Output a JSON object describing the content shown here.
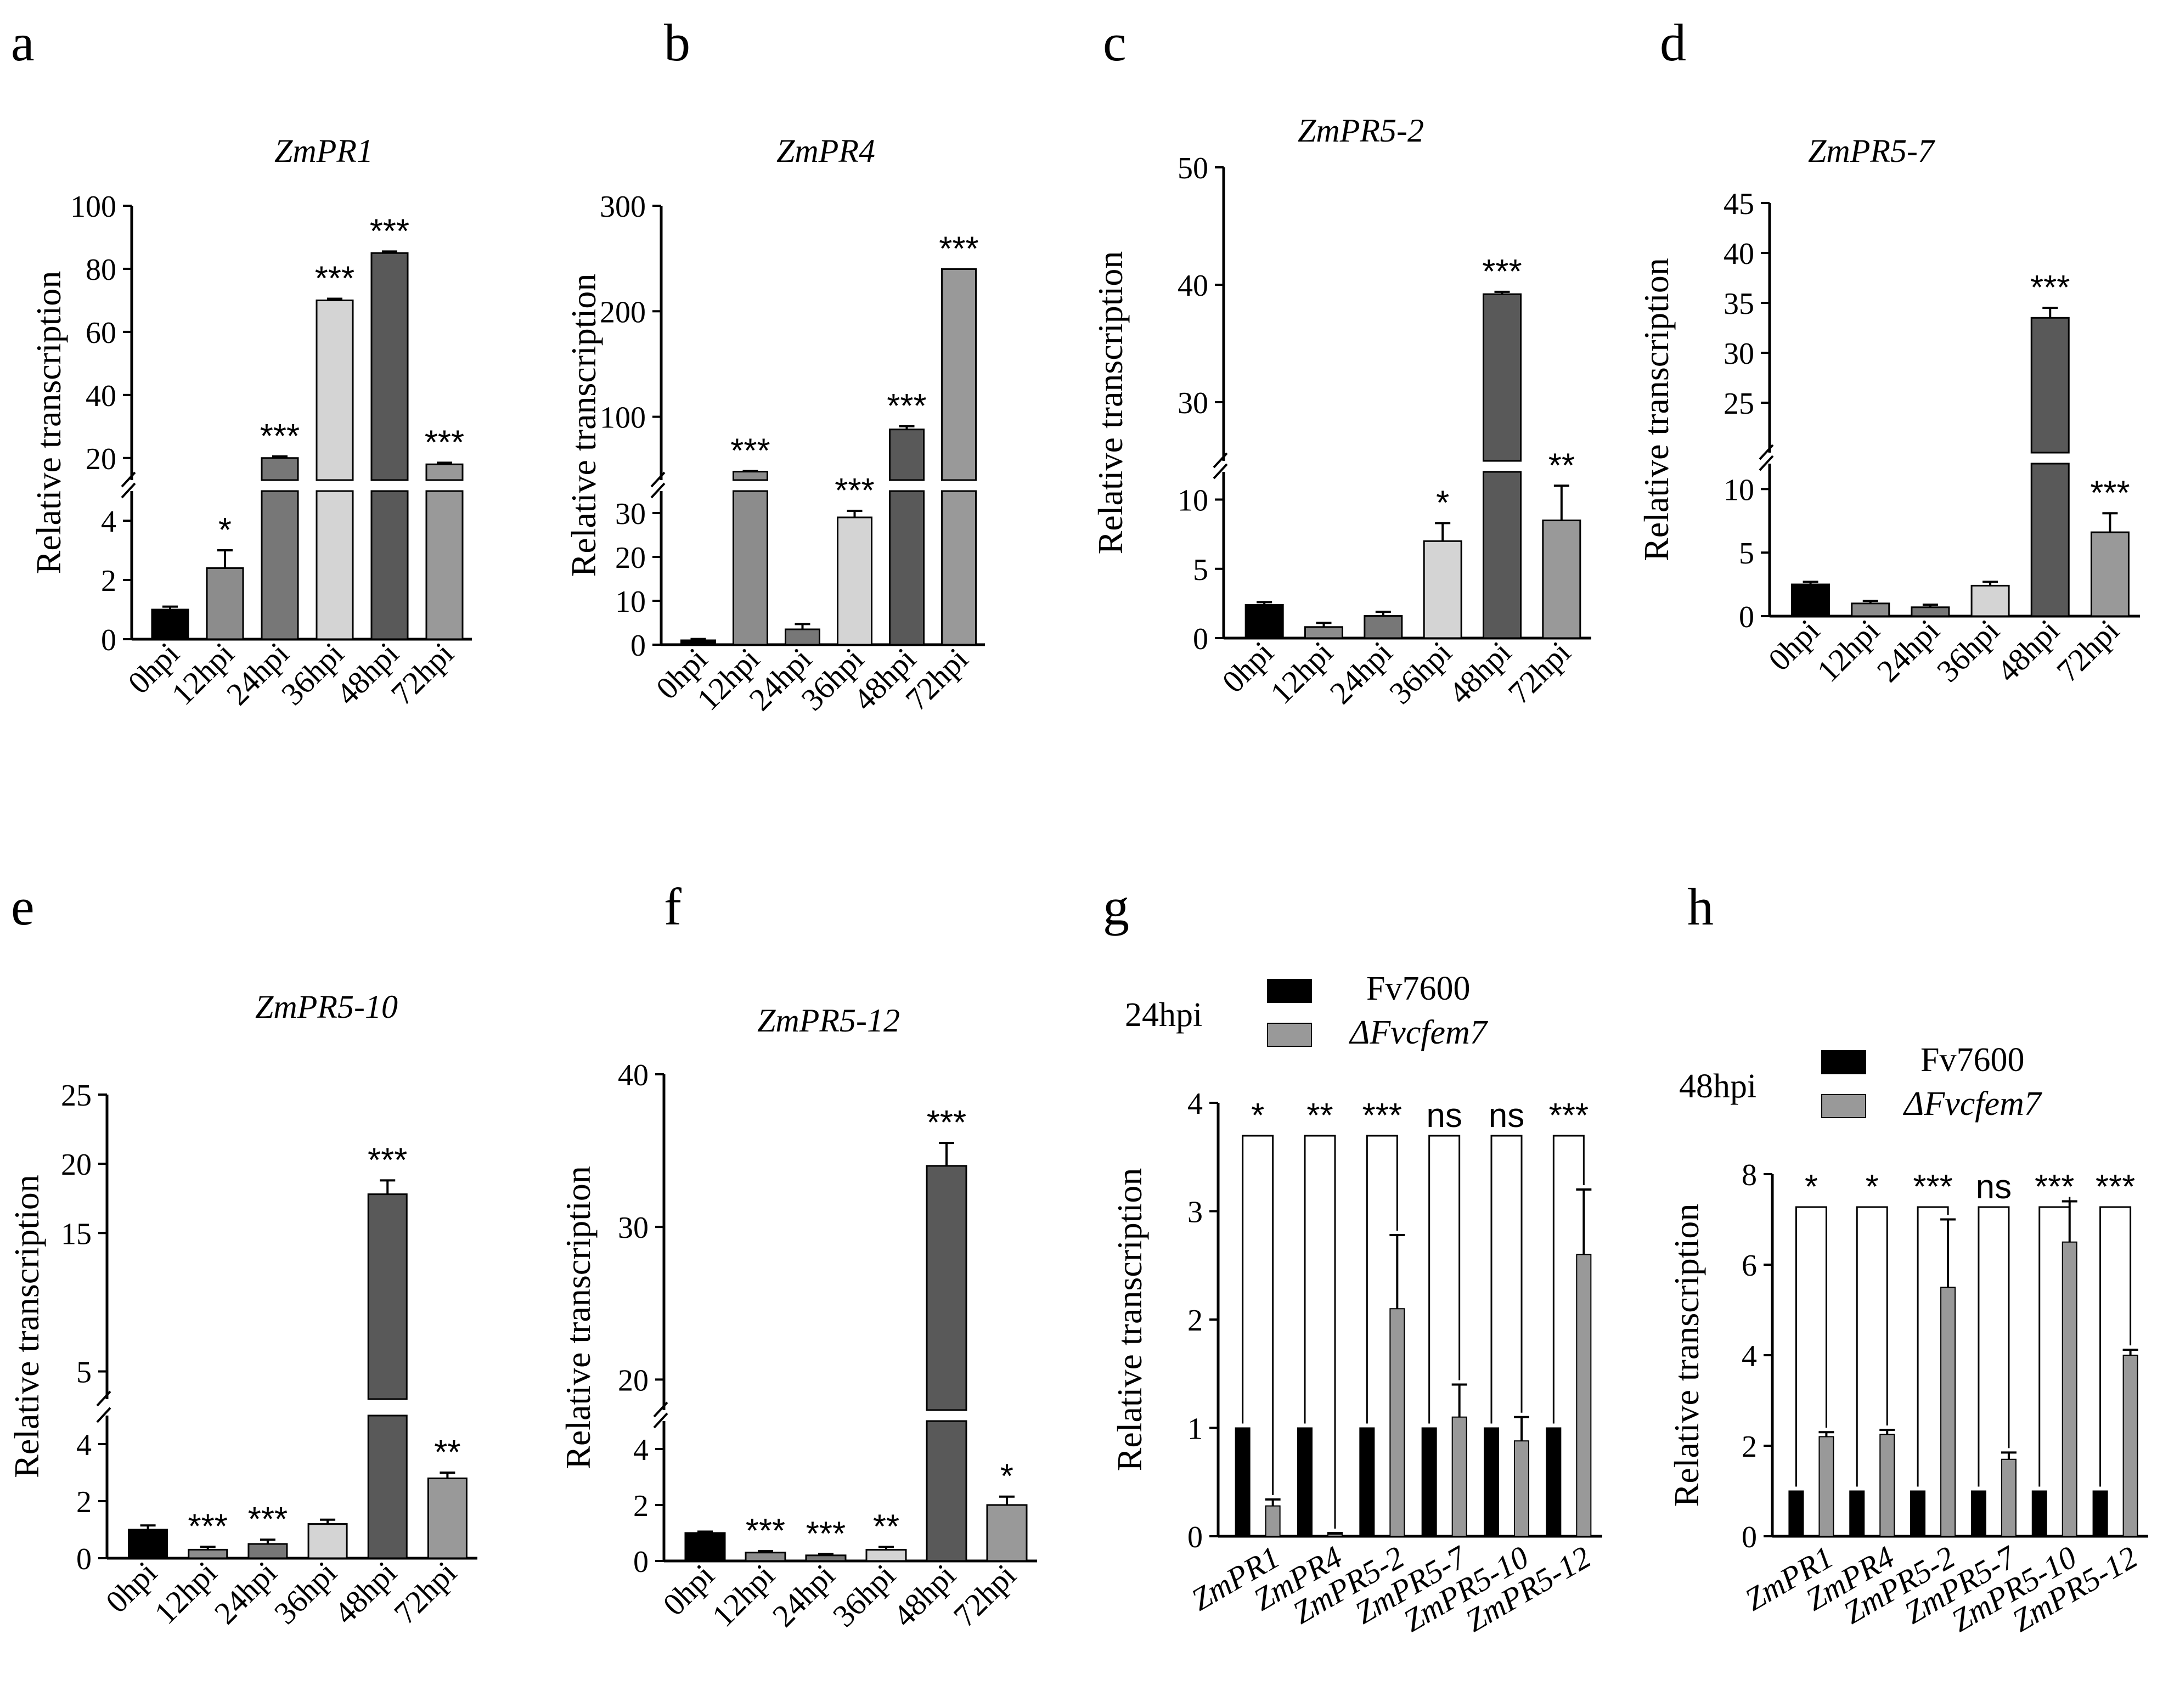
{
  "figure": {
    "panel_labels": [
      "a",
      "b",
      "c",
      "d",
      "e",
      "f",
      "g",
      "h"
    ],
    "ylabel": "Relative transcription"
  },
  "chart_data": [
    {
      "id": "a",
      "type": "bar",
      "title": "ZmPR1",
      "ylabel": "Relative transcription",
      "categories": [
        "0hpi",
        "12hpi",
        "24hpi",
        "36hpi",
        "48hpi",
        "72hpi"
      ],
      "values": [
        1.0,
        2.4,
        20,
        70,
        85,
        18
      ],
      "errors": [
        0.1,
        0.6,
        0.5,
        0.5,
        0.5,
        0.5
      ],
      "significance": [
        "",
        "*",
        "***",
        "***",
        "***",
        "***"
      ],
      "axis_break": true,
      "lower": {
        "range": [
          0,
          5
        ],
        "ticks": [
          0,
          2,
          4
        ]
      },
      "upper": {
        "range": [
          13,
          100
        ],
        "ticks": [
          20,
          40,
          60,
          80,
          100
        ]
      },
      "colors": [
        "#000000",
        "#8c8c8c",
        "#777777",
        "#d4d4d4",
        "#595959",
        "#999999"
      ]
    },
    {
      "id": "b",
      "type": "bar",
      "title": "ZmPR4",
      "ylabel": "Relative transcription",
      "categories": [
        "0hpi",
        "12hpi",
        "24hpi",
        "36hpi",
        "48hpi",
        "72hpi"
      ],
      "values": [
        1.0,
        48,
        3.5,
        29,
        88,
        240
      ],
      "errors": [
        0.3,
        0.5,
        1.2,
        1.5,
        3,
        0
      ],
      "significance": [
        "",
        "***",
        "",
        "***",
        "***",
        "***"
      ],
      "axis_break": true,
      "lower": {
        "range": [
          0,
          35
        ],
        "ticks": [
          0,
          10,
          20,
          30
        ]
      },
      "upper": {
        "range": [
          40,
          300
        ],
        "ticks": [
          100,
          200,
          300
        ]
      },
      "colors": [
        "#000000",
        "#8c8c8c",
        "#777777",
        "#d4d4d4",
        "#595959",
        "#999999"
      ]
    },
    {
      "id": "c",
      "type": "bar",
      "title": "ZmPR5-2",
      "ylabel": "Relative transcription",
      "categories": [
        "0hpi",
        "12hpi",
        "24hpi",
        "36hpi",
        "48hpi",
        "72hpi"
      ],
      "values": [
        2.4,
        0.8,
        1.6,
        7.0,
        39.2,
        8.5
      ],
      "errors": [
        0.2,
        0.3,
        0.3,
        1.3,
        0.2,
        2.5
      ],
      "significance": [
        "",
        "",
        "",
        "*",
        "***",
        "**"
      ],
      "axis_break": true,
      "lower": {
        "range": [
          0,
          12
        ],
        "ticks": [
          0,
          5,
          10
        ]
      },
      "upper": {
        "range": [
          25,
          50
        ],
        "ticks": [
          30,
          40,
          50
        ]
      },
      "colors": [
        "#000000",
        "#8c8c8c",
        "#777777",
        "#d4d4d4",
        "#595959",
        "#999999"
      ]
    },
    {
      "id": "d",
      "type": "bar",
      "title": "ZmPR5-7",
      "ylabel": "Relative transcription",
      "categories": [
        "0hpi",
        "12hpi",
        "24hpi",
        "36hpi",
        "48hpi",
        "72hpi"
      ],
      "values": [
        2.5,
        1.0,
        0.7,
        2.4,
        33.5,
        6.6
      ],
      "errors": [
        0.2,
        0.2,
        0.2,
        0.3,
        1.0,
        1.5
      ],
      "significance": [
        "",
        "",
        "",
        "",
        "***",
        "***"
      ],
      "axis_break": true,
      "lower": {
        "range": [
          0,
          12
        ],
        "ticks": [
          0,
          5,
          10
        ]
      },
      "upper": {
        "range": [
          20,
          45
        ],
        "ticks": [
          25,
          30,
          35,
          40,
          45
        ]
      },
      "colors": [
        "#000000",
        "#8c8c8c",
        "#777777",
        "#d4d4d4",
        "#595959",
        "#999999"
      ]
    },
    {
      "id": "e",
      "type": "bar",
      "title": "ZmPR5-10",
      "ylabel": "Relative transcription",
      "categories": [
        "0hpi",
        "12hpi",
        "24hpi",
        "36hpi",
        "48hpi",
        "72hpi"
      ],
      "values": [
        1.0,
        0.3,
        0.5,
        1.2,
        17.8,
        2.8
      ],
      "errors": [
        0.15,
        0.1,
        0.15,
        0.15,
        1.0,
        0.2
      ],
      "significance": [
        "",
        "***",
        "***",
        "",
        "***",
        "**"
      ],
      "axis_break": true,
      "lower": {
        "range": [
          0,
          5
        ],
        "ticks": [
          0,
          2,
          4
        ]
      },
      "upper": {
        "range": [
          3,
          25
        ],
        "ticks": [
          5,
          15,
          20,
          25
        ]
      },
      "colors": [
        "#000000",
        "#8c8c8c",
        "#777777",
        "#d4d4d4",
        "#595959",
        "#999999"
      ]
    },
    {
      "id": "f",
      "type": "bar",
      "title": "ZmPR5-12",
      "ylabel": "Relative transcription",
      "categories": [
        "0hpi",
        "12hpi",
        "24hpi",
        "36hpi",
        "48hpi",
        "72hpi"
      ],
      "values": [
        1.0,
        0.3,
        0.2,
        0.4,
        34.0,
        2.0
      ],
      "errors": [
        0.05,
        0.05,
        0.05,
        0.1,
        1.5,
        0.3
      ],
      "significance": [
        "",
        "***",
        "***",
        "**",
        "***",
        "*"
      ],
      "axis_break": true,
      "lower": {
        "range": [
          0,
          5
        ],
        "ticks": [
          0,
          2,
          4
        ]
      },
      "upper": {
        "range": [
          18,
          40
        ],
        "ticks": [
          20,
          30,
          40
        ]
      },
      "colors": [
        "#000000",
        "#8c8c8c",
        "#777777",
        "#d4d4d4",
        "#595959",
        "#999999"
      ]
    },
    {
      "id": "g",
      "type": "bar",
      "title": "",
      "timepoint": "24hpi",
      "ylabel": "Relative transcription",
      "categories": [
        "ZmPR1",
        "ZmPR4",
        "ZmPR5-2",
        "ZmPR5-7",
        "ZmPR5-10",
        "ZmPR5-12"
      ],
      "series": [
        {
          "name": "Fv7600",
          "values": [
            1,
            1,
            1,
            1,
            1,
            1
          ],
          "errors": [
            0,
            0,
            0,
            0,
            0,
            0
          ],
          "color": "#000000"
        },
        {
          "name": "ΔFvcfem7",
          "values": [
            0.28,
            0.02,
            2.1,
            1.1,
            0.88,
            2.6
          ],
          "errors": [
            0.06,
            0.01,
            0.68,
            0.3,
            0.22,
            0.6
          ],
          "color": "#999999"
        }
      ],
      "significance": [
        "*",
        "**",
        "***",
        "ns",
        "ns",
        "***"
      ],
      "ylim": [
        0,
        4
      ],
      "ticks": [
        0,
        1,
        2,
        3,
        4
      ]
    },
    {
      "id": "h",
      "type": "bar",
      "title": "",
      "timepoint": "48hpi",
      "ylabel": "Relative transcription",
      "categories": [
        "ZmPR1",
        "ZmPR4",
        "ZmPR5-2",
        "ZmPR5-7",
        "ZmPR5-10",
        "ZmPR5-12"
      ],
      "series": [
        {
          "name": "Fv7600",
          "values": [
            1,
            1,
            1,
            1,
            1,
            1
          ],
          "errors": [
            0,
            0,
            0,
            0,
            0,
            0
          ],
          "color": "#000000"
        },
        {
          "name": "ΔFvcfem7",
          "values": [
            2.2,
            2.25,
            5.5,
            1.7,
            6.5,
            4.0
          ],
          "errors": [
            0.1,
            0.1,
            1.5,
            0.15,
            0.9,
            0.12
          ],
          "color": "#999999"
        }
      ],
      "significance": [
        "*",
        "*",
        "***",
        "ns",
        "***",
        "***"
      ],
      "ylim": [
        0,
        8
      ],
      "ticks": [
        0,
        2,
        4,
        6,
        8
      ]
    }
  ]
}
